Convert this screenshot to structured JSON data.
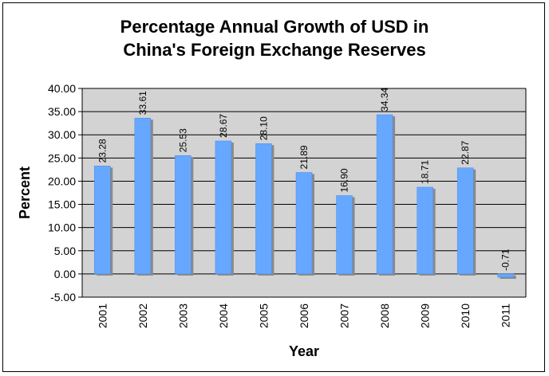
{
  "chart_data": {
    "type": "bar",
    "title_line1": "Percentage Annual Growth of USD in",
    "title_line2": "China's Foreign Exchange Reserves",
    "xlabel": "Year",
    "ylabel": "Percent",
    "ylim": [
      -5,
      40
    ],
    "yticks": [
      "40.00",
      "35.00",
      "30.00",
      "25.00",
      "20.00",
      "15.00",
      "10.00",
      "5.00",
      "0.00",
      "-5.00"
    ],
    "ytick_values": [
      40,
      35,
      30,
      25,
      20,
      15,
      10,
      5,
      0,
      -5
    ],
    "categories": [
      "2001",
      "2002",
      "2003",
      "2004",
      "2005",
      "2006",
      "2007",
      "2008",
      "2009",
      "2010",
      "2011"
    ],
    "values": [
      23.28,
      33.61,
      25.53,
      28.67,
      28.1,
      21.89,
      16.9,
      34.34,
      18.71,
      22.87,
      -0.71
    ],
    "value_labels": [
      "23.28",
      "33.61",
      "25.53",
      "28.67",
      "28.10",
      "21.89",
      "16.90",
      "34.34",
      "18.71",
      "22.87",
      "-0.71"
    ],
    "grid": true,
    "legend": "none",
    "colors": {
      "bar": "#66a8ff",
      "bar_edge": "#4a8ae6",
      "bar_shadow": "#8a8a8a",
      "plot_background": "#d3d3d3",
      "gridline": "#000000"
    }
  }
}
